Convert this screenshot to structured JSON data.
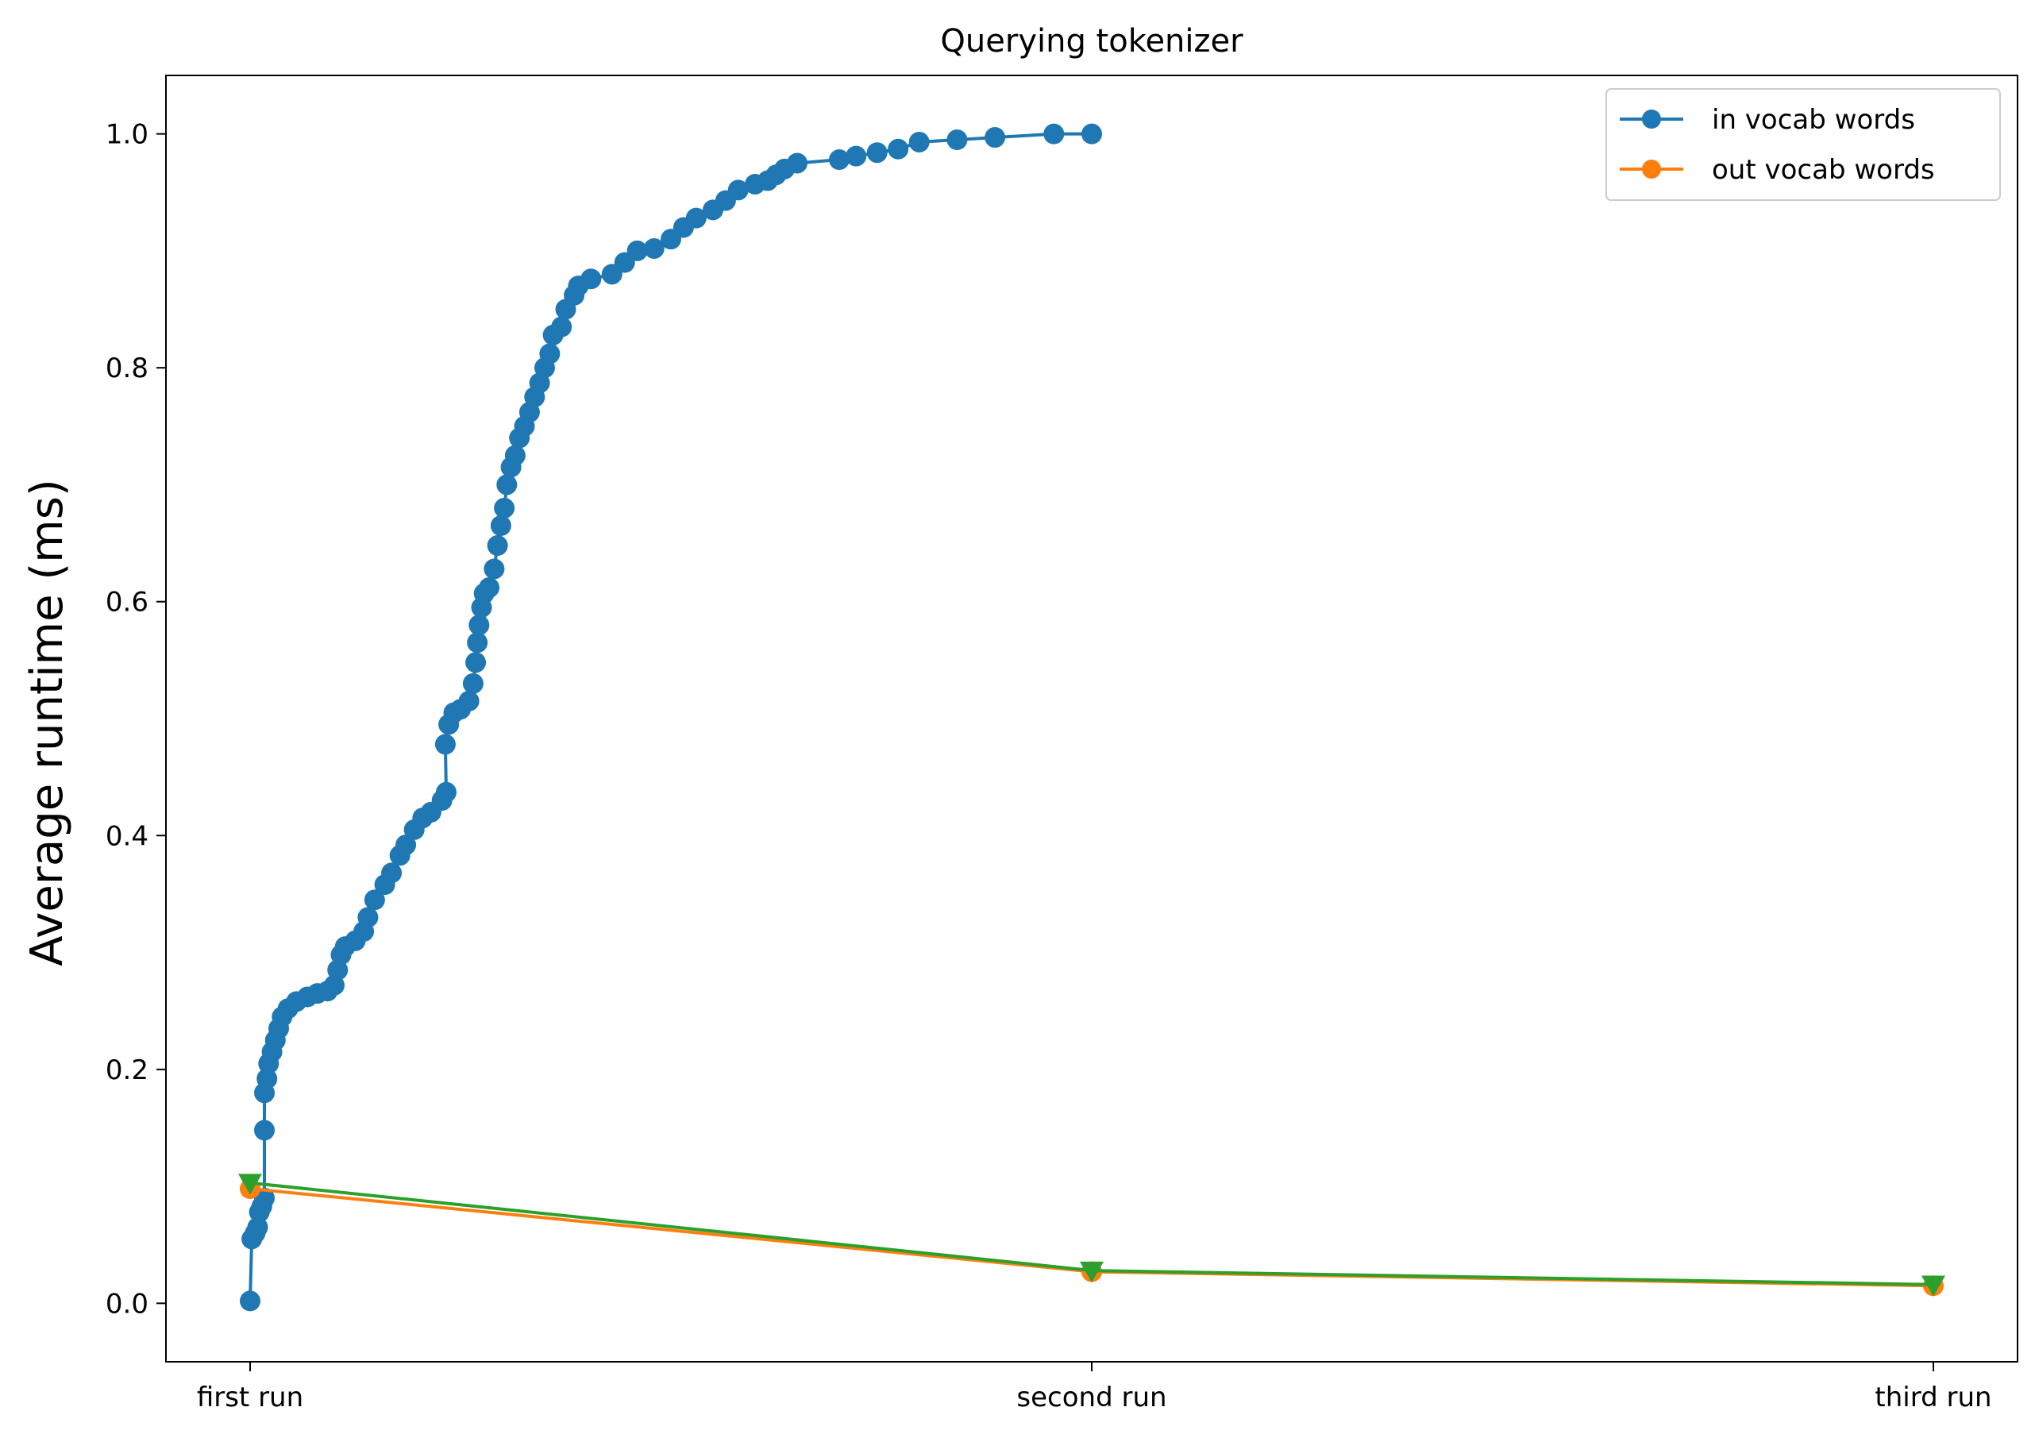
{
  "chart_data": {
    "type": "line",
    "title": "Querying tokenizer",
    "xlabel": "",
    "ylabel": "Average runtime (ms)",
    "categories": [
      "first run",
      "second run",
      "third run"
    ],
    "xlim": [
      -0.1,
      2.1
    ],
    "ylim": [
      -0.05,
      1.05
    ],
    "yticks": [
      0.0,
      0.2,
      0.4,
      0.6,
      0.8,
      1.0
    ],
    "ytick_labels": [
      "0.0",
      "0.2",
      "0.4",
      "0.6",
      "0.8",
      "1.0"
    ],
    "grid": false,
    "legend": {
      "placement": "top-right",
      "entries": [
        "in vocab words",
        "out vocab words"
      ]
    },
    "series": [
      {
        "name": "in vocab words",
        "color": "#1f77b4",
        "marker": "circle",
        "points": [
          [
            0.0,
            0.002
          ],
          [
            0.002,
            0.055
          ],
          [
            0.006,
            0.06
          ],
          [
            0.009,
            0.065
          ],
          [
            0.011,
            0.078
          ],
          [
            0.014,
            0.083
          ],
          [
            0.017,
            0.09
          ],
          [
            0.017,
            0.148
          ],
          [
            0.017,
            0.18
          ],
          [
            0.02,
            0.192
          ],
          [
            0.022,
            0.205
          ],
          [
            0.026,
            0.215
          ],
          [
            0.03,
            0.225
          ],
          [
            0.034,
            0.235
          ],
          [
            0.038,
            0.245
          ],
          [
            0.045,
            0.252
          ],
          [
            0.055,
            0.258
          ],
          [
            0.068,
            0.262
          ],
          [
            0.08,
            0.265
          ],
          [
            0.092,
            0.267
          ],
          [
            0.1,
            0.272
          ],
          [
            0.104,
            0.285
          ],
          [
            0.108,
            0.298
          ],
          [
            0.113,
            0.305
          ],
          [
            0.125,
            0.31
          ],
          [
            0.135,
            0.318
          ],
          [
            0.14,
            0.33
          ],
          [
            0.148,
            0.345
          ],
          [
            0.16,
            0.358
          ],
          [
            0.168,
            0.368
          ],
          [
            0.178,
            0.383
          ],
          [
            0.185,
            0.392
          ],
          [
            0.195,
            0.405
          ],
          [
            0.205,
            0.415
          ],
          [
            0.215,
            0.42
          ],
          [
            0.228,
            0.43
          ],
          [
            0.233,
            0.437
          ],
          [
            0.232,
            0.478
          ],
          [
            0.236,
            0.495
          ],
          [
            0.242,
            0.505
          ],
          [
            0.25,
            0.508
          ],
          [
            0.26,
            0.515
          ],
          [
            0.265,
            0.53
          ],
          [
            0.268,
            0.548
          ],
          [
            0.27,
            0.565
          ],
          [
            0.272,
            0.58
          ],
          [
            0.275,
            0.595
          ],
          [
            0.278,
            0.607
          ],
          [
            0.284,
            0.612
          ],
          [
            0.29,
            0.628
          ],
          [
            0.294,
            0.648
          ],
          [
            0.298,
            0.665
          ],
          [
            0.302,
            0.68
          ],
          [
            0.305,
            0.7
          ],
          [
            0.31,
            0.715
          ],
          [
            0.315,
            0.725
          ],
          [
            0.32,
            0.74
          ],
          [
            0.326,
            0.75
          ],
          [
            0.332,
            0.762
          ],
          [
            0.338,
            0.775
          ],
          [
            0.344,
            0.787
          ],
          [
            0.35,
            0.8
          ],
          [
            0.356,
            0.812
          ],
          [
            0.36,
            0.828
          ],
          [
            0.37,
            0.835
          ],
          [
            0.375,
            0.85
          ],
          [
            0.385,
            0.862
          ],
          [
            0.39,
            0.87
          ],
          [
            0.405,
            0.876
          ],
          [
            0.43,
            0.88
          ],
          [
            0.445,
            0.89
          ],
          [
            0.46,
            0.9
          ],
          [
            0.48,
            0.902
          ],
          [
            0.5,
            0.91
          ],
          [
            0.515,
            0.92
          ],
          [
            0.53,
            0.928
          ],
          [
            0.55,
            0.935
          ],
          [
            0.565,
            0.943
          ],
          [
            0.58,
            0.952
          ],
          [
            0.6,
            0.957
          ],
          [
            0.615,
            0.96
          ],
          [
            0.625,
            0.965
          ],
          [
            0.635,
            0.97
          ],
          [
            0.65,
            0.975
          ],
          [
            0.7,
            0.978
          ],
          [
            0.72,
            0.981
          ],
          [
            0.745,
            0.984
          ],
          [
            0.77,
            0.987
          ],
          [
            0.795,
            0.993
          ],
          [
            0.84,
            0.995
          ],
          [
            0.885,
            0.997
          ],
          [
            0.955,
            1.0
          ],
          [
            1.0,
            1.0
          ]
        ]
      },
      {
        "name": "out vocab words",
        "color": "#ff7f0e",
        "marker": "circle",
        "points": [
          [
            0,
            0.098
          ],
          [
            1,
            0.027
          ],
          [
            2,
            0.015
          ]
        ]
      },
      {
        "color": "#2ca02c",
        "marker": "triangle-down",
        "points": [
          [
            0,
            0.103
          ],
          [
            1,
            0.028
          ],
          [
            2,
            0.016
          ]
        ]
      }
    ]
  }
}
